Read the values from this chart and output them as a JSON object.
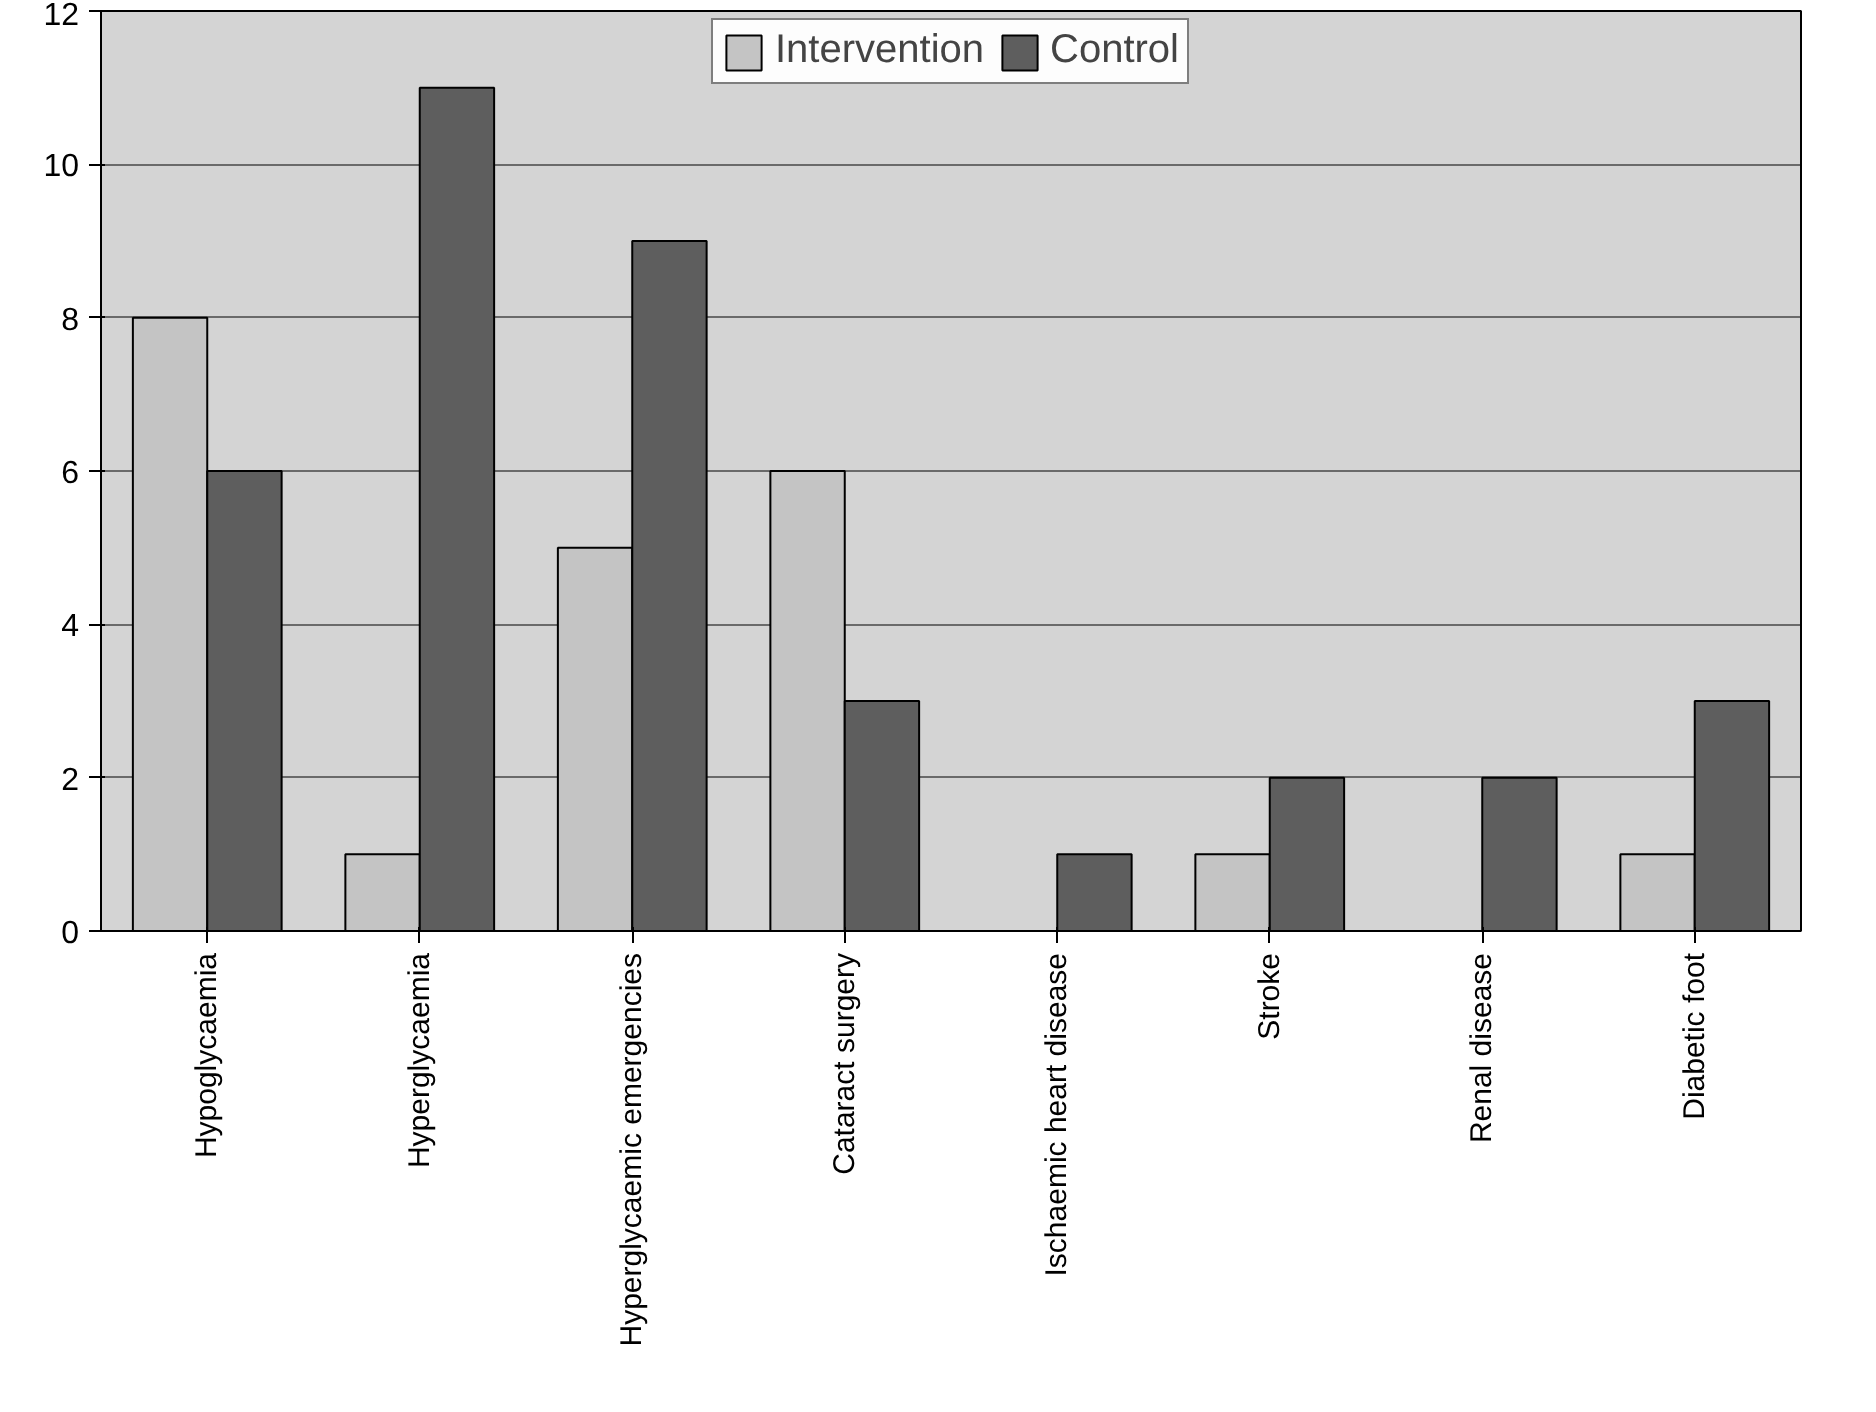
{
  "chart_data": {
    "type": "bar",
    "categories": [
      "Hypoglycaemia",
      "Hyperglycaemia",
      "Hyperglycaemic emergencies",
      "Cataract surgery",
      "Ischaemic heart disease",
      "Stroke",
      "Renal disease",
      "Diabetic foot"
    ],
    "series": [
      {
        "name": "Intervention",
        "color": "#c4c4c4",
        "values": [
          8,
          1,
          5,
          6,
          0,
          1,
          0,
          1
        ]
      },
      {
        "name": "Control",
        "color": "#5e5e5e",
        "values": [
          6,
          11,
          9,
          3,
          1,
          2,
          2,
          3
        ]
      }
    ],
    "ylim": [
      0,
      12
    ],
    "yticks": [
      0,
      2,
      4,
      6,
      8,
      10,
      12
    ],
    "grid": "y",
    "legend": "top"
  }
}
